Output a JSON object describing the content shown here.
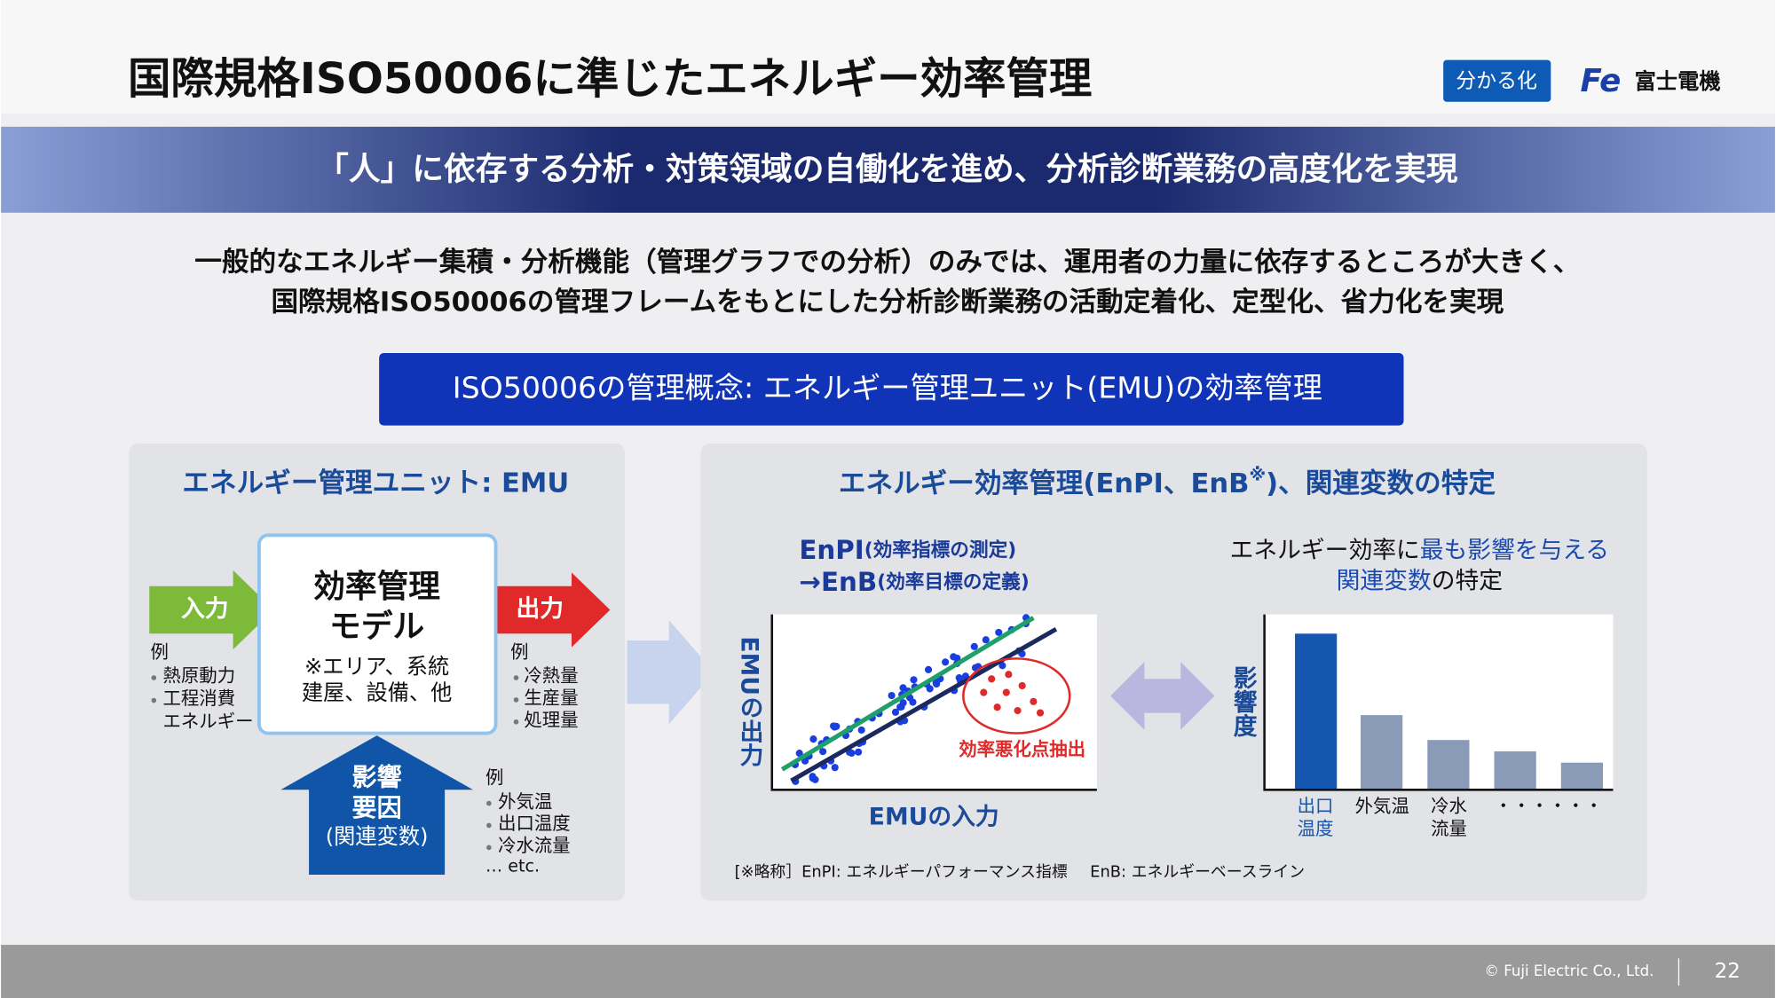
{
  "header": {
    "title": "国際規格ISO50006に準じたエネルギー効率管理",
    "badge": "分かる化",
    "logo_mark": "Fe",
    "logo_text": "富士電機"
  },
  "banner": "「人」に依存する分析・対策領域の自働化を進め、分析診断業務の高度化を実現",
  "intro": [
    "一般的なエネルギー集積・分析機能（管理グラフでの分析）のみでは、運用者の力量に依存するところが大きく、",
    "国際規格ISO50006の管理フレームをもとにした分析診断業務の活動定着化、定型化、省力化を実現"
  ],
  "concept": "ISO50006の管理概念: エネルギー管理ユニット(EMU)の効率管理",
  "left_panel": {
    "title": "エネルギー管理ユニット: EMU",
    "model_title": [
      "効率管理",
      "モデル"
    ],
    "model_note": [
      "※エリア、系統",
      "建屋、設備、他"
    ],
    "input": {
      "label": "入力",
      "example": "例",
      "items": [
        [
          "熱原動力"
        ],
        [
          "工程消費",
          "エネルギー"
        ]
      ]
    },
    "output": {
      "label": "出力",
      "example": "例",
      "items": [
        "冷熱量",
        "生産量",
        "処理量"
      ]
    },
    "influence": {
      "label": [
        "影響",
        "要因",
        "(関連変数)"
      ],
      "example": "例",
      "items": [
        "外気温",
        "出口温度",
        "冷水流量"
      ],
      "more": "… etc."
    }
  },
  "right_panel": {
    "title": [
      "エネルギー効率管理(EnPI、EnB",
      "※",
      ")、関連変数の特定"
    ],
    "enpi": [
      [
        "EnPI",
        "(効率指標の測定)"
      ],
      [
        "→EnB",
        "(効率目標の定義)"
      ]
    ],
    "scatter": {
      "y_label": "EMUの出力",
      "x_label": "EMUの入力",
      "annotation": "効率悪化点抽出"
    },
    "heading": [
      [
        "エネルギー効率に",
        "最も影響を与える"
      ],
      [
        "関連変数",
        "の特定"
      ]
    ],
    "bars": {
      "y_label": "影響度",
      "categories": [
        [
          "出口",
          "温度"
        ],
        [
          "外気温"
        ],
        [
          "冷水",
          "流量"
        ],
        [
          "・・・・・・"
        ]
      ]
    },
    "note": [
      "[※略称］EnPI: エネルギーパフォーマンス指標",
      "EnB: エネルギーベースライン"
    ]
  },
  "footer": {
    "copyright": "© Fuji Electric Co., Ltd.",
    "page": 22
  }
}
